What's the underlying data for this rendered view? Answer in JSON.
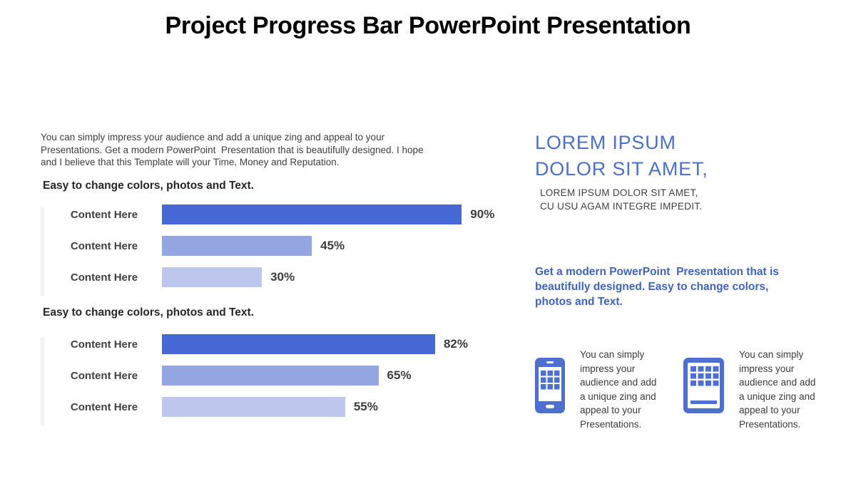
{
  "slide_title": "Project Progress Bar PowerPoint Presentation",
  "left": {
    "intro": "You can simply impress your audience and add a unique zing and appeal to your\nPresentations. Get a modern PowerPoint  Presentation that is beautifully designed. I hope\nand I believe that this Template will your Time, Money and Reputation."
  },
  "chart_data": [
    {
      "type": "bar",
      "orientation": "horizontal",
      "title": "Easy to change colors, photos and Text.",
      "categories": [
        "Content Here",
        "Content Here",
        "Content Here"
      ],
      "values": [
        90,
        45,
        30
      ],
      "value_labels": [
        "90%",
        "45%",
        "30%"
      ],
      "bar_colors": [
        "#4568D4",
        "#94A6E2",
        "#BDC6EC"
      ],
      "xlim": [
        0,
        100
      ],
      "grid": false,
      "legend": false
    },
    {
      "type": "bar",
      "orientation": "horizontal",
      "title": "Easy to change colors, photos and Text.",
      "categories": [
        "Content Here",
        "Content Here",
        "Content Here"
      ],
      "values": [
        82,
        65,
        55
      ],
      "value_labels": [
        "82%",
        "65%",
        "55%"
      ],
      "bar_colors": [
        "#4568D4",
        "#94A6E2",
        "#BDC6EC"
      ],
      "xlim": [
        0,
        100
      ],
      "grid": false,
      "legend": false
    }
  ],
  "right": {
    "headline": "LOREM IPSUM\nDOLOR SIT AMET,",
    "subhead": "LOREM IPSUM DOLOR SIT AMET,\nCU USU AGAM INTEGRE IMPEDIT.",
    "emphasis": "Get a modern PowerPoint  Presentation that is\nbeautifully designed. Easy to change colors,\nphotos and Text.",
    "features": [
      {
        "icon": "smartphone-icon",
        "text": "You can simply\nimpress your\naudience and add\na unique zing and\nappeal to your\nPresentations."
      },
      {
        "icon": "tablet-icon",
        "text": "You can simply\nimpress your\naudience and add\na unique zing and\nappeal to your\nPresentations."
      }
    ]
  },
  "colors": {
    "bar_dark": "#4568D4",
    "bar_medium": "#94A6E2",
    "bar_light": "#BDC6EC",
    "headline_blue": "#4C70C8",
    "emphasis_blue": "#3F63BE",
    "icon_blue": "#4C6FD0",
    "body_text": "#3F3F3F",
    "title_black": "#000000"
  }
}
